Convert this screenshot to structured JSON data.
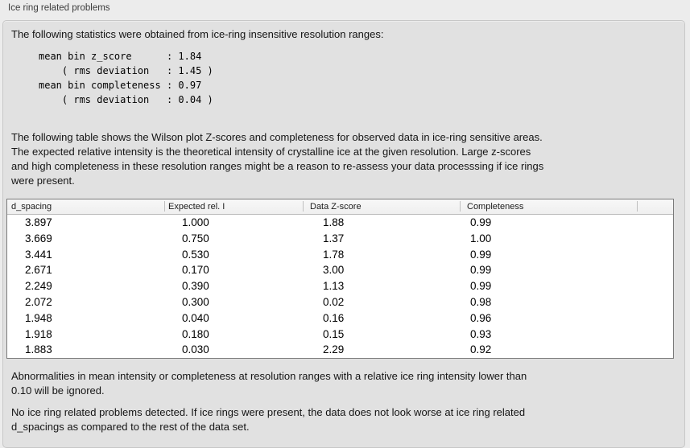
{
  "panel": {
    "title": "Ice ring related problems"
  },
  "intro": {
    "text": "The following statistics were obtained from ice-ring insensitive resolution ranges:",
    "stats_block": "mean bin z_score      : 1.84\n    ( rms deviation   : 1.45 )\nmean bin completeness : 0.97\n    ( rms deviation   : 0.04 )"
  },
  "description": {
    "text": "The following table shows the Wilson plot Z-scores and completeness for observed data in ice-ring sensitive areas.\nThe expected relative intensity is the theoretical intensity of crystalline ice at the given resolution. Large z-scores\nand high completeness in these resolution ranges might be a reason to re-assess your data processsing if ice rings\nwere present."
  },
  "table": {
    "columns": [
      "d_spacing",
      "Expected rel. I",
      "Data Z-score",
      "Completeness"
    ],
    "rows": [
      [
        "3.897",
        "1.000",
        "1.88",
        "0.99"
      ],
      [
        "3.669",
        "0.750",
        "1.37",
        "1.00"
      ],
      [
        "3.441",
        "0.530",
        "1.78",
        "0.99"
      ],
      [
        "2.671",
        "0.170",
        "3.00",
        "0.99"
      ],
      [
        "2.249",
        "0.390",
        "1.13",
        "0.99"
      ],
      [
        "2.072",
        "0.300",
        "0.02",
        "0.98"
      ],
      [
        "1.948",
        "0.040",
        "0.16",
        "0.96"
      ],
      [
        "1.918",
        "0.180",
        "0.15",
        "0.93"
      ],
      [
        "1.883",
        "0.030",
        "2.29",
        "0.92"
      ]
    ]
  },
  "footer": {
    "note": "Abnormalities in mean intensity or completeness at resolution ranges with a relative ice ring intensity lower than\n0.10 will be ignored.",
    "conclusion": "No ice ring related problems detected. If ice rings were present, the data does not look worse at ice ring related\nd_spacings as compared to the rest of the data set."
  },
  "colors": {
    "window_bg": "#ececec",
    "groupbox_bg": "#e1e1e1",
    "groupbox_border": "#c7c7c7",
    "table_border": "#7a7a7a",
    "table_header_bg": "#f3f3f3",
    "table_body_bg": "#ffffff",
    "text": "#141414"
  }
}
